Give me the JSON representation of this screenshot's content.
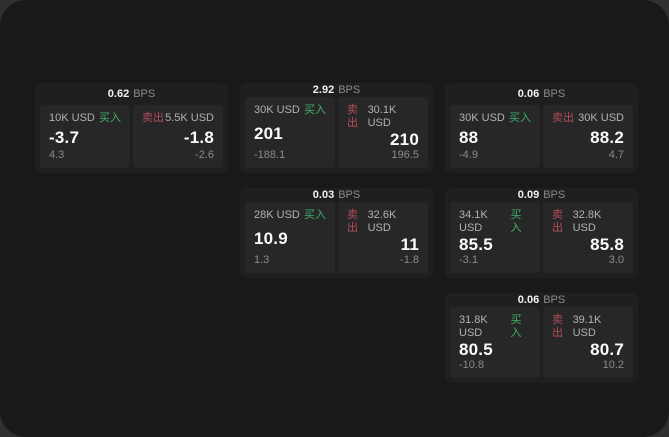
{
  "colors": {
    "buy_green": "#40b16c",
    "sell_red": "#b44d5c"
  },
  "cards": [
    {
      "row": 1,
      "col": 1,
      "bps_value": "0.62",
      "bps_label": "BPS",
      "buy": {
        "amount": "10K USD",
        "side_label": "买入",
        "value": "-3.7",
        "sub_value": "4.3"
      },
      "sell": {
        "amount": "5.5K USD",
        "side_label": "卖出",
        "value": "-1.8",
        "sub_value": "-2.6"
      }
    },
    {
      "row": 1,
      "col": 2,
      "bps_value": "2.92",
      "bps_label": "BPS",
      "buy": {
        "amount": "30K USD",
        "side_label": "买入",
        "value": "201",
        "sub_value": "-188.1"
      },
      "sell": {
        "amount": "30.1K USD",
        "side_label": "卖出",
        "value": "210",
        "sub_value": "196.5"
      }
    },
    {
      "row": 1,
      "col": 3,
      "bps_value": "0.06",
      "bps_label": "BPS",
      "buy": {
        "amount": "30K USD",
        "side_label": "买入",
        "value": "88",
        "sub_value": "-4.9"
      },
      "sell": {
        "amount": "30K USD",
        "side_label": "卖出",
        "value": "88.2",
        "sub_value": "4.7"
      }
    },
    {
      "row": 2,
      "col": 2,
      "bps_value": "0.03",
      "bps_label": "BPS",
      "buy": {
        "amount": "28K USD",
        "side_label": "买入",
        "value": "10.9",
        "sub_value": "1.3"
      },
      "sell": {
        "amount": "32.6K USD",
        "side_label": "卖出",
        "value": "11",
        "sub_value": "-1.8"
      }
    },
    {
      "row": 2,
      "col": 3,
      "bps_value": "0.09",
      "bps_label": "BPS",
      "buy": {
        "amount": "34.1K USD",
        "side_label": "买入",
        "value": "85.5",
        "sub_value": "-3.1"
      },
      "sell": {
        "amount": "32.8K USD",
        "side_label": "卖出",
        "value": "85.8",
        "sub_value": "3.0"
      }
    },
    {
      "row": 3,
      "col": 3,
      "bps_value": "0.06",
      "bps_label": "BPS",
      "buy": {
        "amount": "31.8K USD",
        "side_label": "买入",
        "value": "80.5",
        "sub_value": "-10.8"
      },
      "sell": {
        "amount": "39.1K USD",
        "side_label": "卖出",
        "value": "80.7",
        "sub_value": "10.2"
      }
    }
  ]
}
